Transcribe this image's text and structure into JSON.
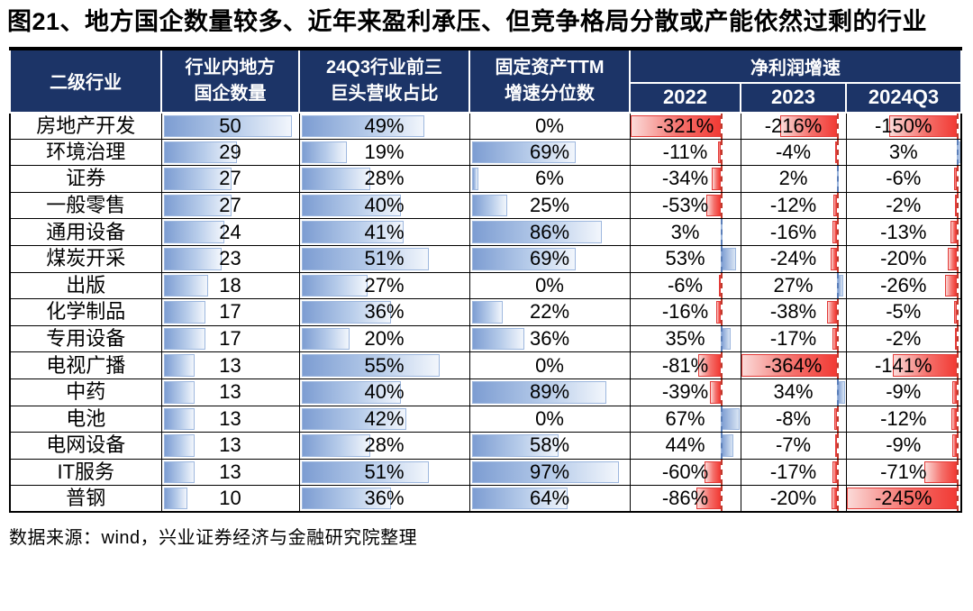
{
  "figure": {
    "title": "图21、地方国企数量较多、近年来盈利承压、但竞争格局分散或产能依然过剩的行业",
    "source": "数据来源：wind，兴业证券经济与金融研究院整理"
  },
  "table_headers": {
    "industry": "二级行业",
    "soe_count_line1": "行业内地方",
    "soe_count_line2": "国企数量",
    "top3_line1": "24Q3行业前三",
    "top3_line2": "巨头营收占比",
    "fixed_line1": "固定资产TTM",
    "fixed_line2": "增速分位数",
    "profit_group": "净利润增速",
    "year_2022": "2022",
    "year_2023": "2023",
    "year_2024q3": "2024Q3"
  },
  "colors": {
    "header_bg": "#1C3467",
    "header_text": "#FFFFFF",
    "grid_line": "#000000",
    "bar_blue": "#7D9DD2",
    "bar_blue_border": "#9DB7DE",
    "bar_red": "#F23B35",
    "bar_red_border": "#E23B38",
    "axis_negative": "#C0392B",
    "axis_positive": "#5B7FB9"
  },
  "chart_data": {
    "type": "table",
    "columns": [
      "二级行业",
      "行业内地方国企数量",
      "24Q3行业前三巨头营收占比",
      "固定资产TTM增速分位数",
      "净利润增速 2022",
      "净利润增速 2023",
      "净利润增速 2024Q3"
    ],
    "rows": [
      {
        "industry": "房地产开发",
        "soe_count": 50,
        "top3_share_pct": 49,
        "fixed_asset_ttm_pctile": 0,
        "profit_2022": -321,
        "profit_2023": -216,
        "profit_2024q3": -150
      },
      {
        "industry": "环境治理",
        "soe_count": 29,
        "top3_share_pct": 19,
        "fixed_asset_ttm_pctile": 69,
        "profit_2022": -11,
        "profit_2023": -4,
        "profit_2024q3": 3
      },
      {
        "industry": "证券",
        "soe_count": 27,
        "top3_share_pct": 28,
        "fixed_asset_ttm_pctile": 6,
        "profit_2022": -34,
        "profit_2023": 2,
        "profit_2024q3": -6
      },
      {
        "industry": "一般零售",
        "soe_count": 27,
        "top3_share_pct": 40,
        "fixed_asset_ttm_pctile": 25,
        "profit_2022": -53,
        "profit_2023": -12,
        "profit_2024q3": -2
      },
      {
        "industry": "通用设备",
        "soe_count": 24,
        "top3_share_pct": 41,
        "fixed_asset_ttm_pctile": 86,
        "profit_2022": 3,
        "profit_2023": -16,
        "profit_2024q3": -13
      },
      {
        "industry": "煤炭开采",
        "soe_count": 23,
        "top3_share_pct": 51,
        "fixed_asset_ttm_pctile": 69,
        "profit_2022": 53,
        "profit_2023": -24,
        "profit_2024q3": -20
      },
      {
        "industry": "出版",
        "soe_count": 18,
        "top3_share_pct": 27,
        "fixed_asset_ttm_pctile": 0,
        "profit_2022": -6,
        "profit_2023": 27,
        "profit_2024q3": -26
      },
      {
        "industry": "化学制品",
        "soe_count": 17,
        "top3_share_pct": 36,
        "fixed_asset_ttm_pctile": 22,
        "profit_2022": -16,
        "profit_2023": -38,
        "profit_2024q3": -5
      },
      {
        "industry": "专用设备",
        "soe_count": 17,
        "top3_share_pct": 20,
        "fixed_asset_ttm_pctile": 36,
        "profit_2022": 35,
        "profit_2023": -17,
        "profit_2024q3": -2
      },
      {
        "industry": "电视广播",
        "soe_count": 13,
        "top3_share_pct": 55,
        "fixed_asset_ttm_pctile": 0,
        "profit_2022": -81,
        "profit_2023": -364,
        "profit_2024q3": -141
      },
      {
        "industry": "中药",
        "soe_count": 13,
        "top3_share_pct": 40,
        "fixed_asset_ttm_pctile": 89,
        "profit_2022": -39,
        "profit_2023": 34,
        "profit_2024q3": -9
      },
      {
        "industry": "电池",
        "soe_count": 13,
        "top3_share_pct": 42,
        "fixed_asset_ttm_pctile": 0,
        "profit_2022": 67,
        "profit_2023": -8,
        "profit_2024q3": -12
      },
      {
        "industry": "电网设备",
        "soe_count": 13,
        "top3_share_pct": 28,
        "fixed_asset_ttm_pctile": 58,
        "profit_2022": 44,
        "profit_2023": -7,
        "profit_2024q3": -9
      },
      {
        "industry": "IT服务",
        "soe_count": 13,
        "top3_share_pct": 51,
        "fixed_asset_ttm_pctile": 97,
        "profit_2022": -60,
        "profit_2023": -17,
        "profit_2024q3": -71
      },
      {
        "industry": "普钢",
        "soe_count": 10,
        "top3_share_pct": 36,
        "fixed_asset_ttm_pctile": 64,
        "profit_2022": -86,
        "profit_2023": -20,
        "profit_2024q3": -245
      }
    ]
  }
}
